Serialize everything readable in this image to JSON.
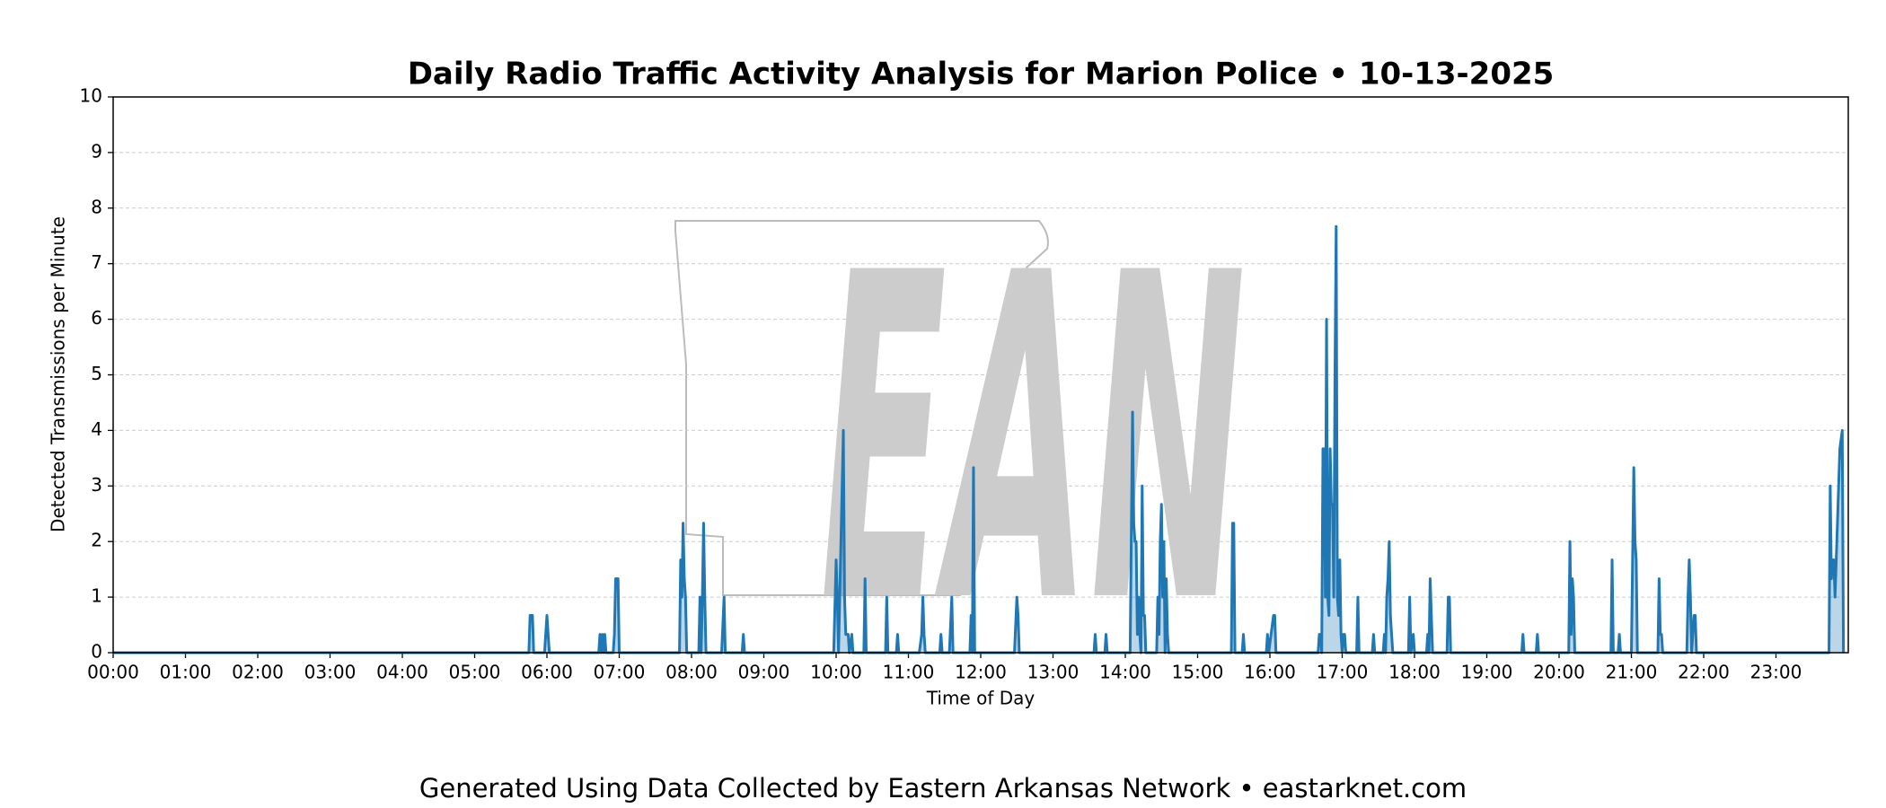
{
  "chart_data": {
    "type": "area",
    "title": "Daily Radio Traffic Activity Analysis for Marion Police • 10-13-2025",
    "x_label": "Time of Day",
    "y_label": "Detected Transmissions per Minute",
    "footer": "Generated Using Data Collected by Eastern Arkansas Network • eastarknet.com",
    "watermark": "EAN",
    "color": "#1f77b4",
    "grid": true,
    "xlim": [
      0,
      1440
    ],
    "ylim": [
      0,
      10
    ],
    "yticks": [
      0,
      1,
      2,
      3,
      4,
      5,
      6,
      7,
      8,
      9,
      10
    ],
    "xticks": [
      {
        "value": 0,
        "label": "00:00"
      },
      {
        "value": 60,
        "label": "01:00"
      },
      {
        "value": 120,
        "label": "02:00"
      },
      {
        "value": 180,
        "label": "03:00"
      },
      {
        "value": 240,
        "label": "04:00"
      },
      {
        "value": 300,
        "label": "05:00"
      },
      {
        "value": 360,
        "label": "06:00"
      },
      {
        "value": 420,
        "label": "07:00"
      },
      {
        "value": 480,
        "label": "08:00"
      },
      {
        "value": 540,
        "label": "09:00"
      },
      {
        "value": 600,
        "label": "10:00"
      },
      {
        "value": 660,
        "label": "11:00"
      },
      {
        "value": 720,
        "label": "12:00"
      },
      {
        "value": 780,
        "label": "13:00"
      },
      {
        "value": 840,
        "label": "14:00"
      },
      {
        "value": 900,
        "label": "15:00"
      },
      {
        "value": 960,
        "label": "16:00"
      },
      {
        "value": 1020,
        "label": "17:00"
      },
      {
        "value": 1080,
        "label": "18:00"
      },
      {
        "value": 1140,
        "label": "19:00"
      },
      {
        "value": 1200,
        "label": "20:00"
      },
      {
        "value": 1260,
        "label": "21:00"
      },
      {
        "value": 1320,
        "label": "22:00"
      },
      {
        "value": 1380,
        "label": "23:00"
      }
    ],
    "x": [
      0,
      345,
      346,
      348,
      349,
      358,
      360,
      361,
      362,
      403,
      404,
      405,
      406,
      407,
      408,
      409,
      415,
      416,
      417,
      419,
      420,
      470,
      471,
      472,
      473,
      474,
      475,
      476,
      486,
      487,
      488,
      489,
      490,
      491,
      492,
      505,
      507,
      508,
      522,
      523,
      524,
      598,
      600,
      601,
      602,
      606,
      607,
      608,
      610,
      611,
      613,
      614,
      623,
      624,
      625,
      641,
      642,
      643,
      650,
      651,
      652,
      669,
      671,
      672,
      673,
      674,
      686,
      687,
      688,
      694,
      696,
      697,
      711,
      712,
      713,
      714,
      715,
      748,
      750,
      751,
      752,
      814,
      815,
      816,
      823,
      824,
      825,
      844,
      846,
      847,
      848,
      849,
      850,
      851,
      852,
      853,
      854,
      855,
      856,
      857,
      866,
      867,
      868,
      869,
      870,
      871,
      872,
      873,
      874,
      875,
      876,
      928,
      929,
      930,
      931,
      937,
      938,
      939,
      957,
      958,
      959,
      963,
      964,
      965,
      1000,
      1001,
      1002,
      1003,
      1004,
      1005,
      1006,
      1007,
      1008,
      1009,
      1010,
      1011,
      1012,
      1013,
      1014,
      1015,
      1016,
      1017,
      1018,
      1019,
      1020,
      1021,
      1022,
      1023,
      1032,
      1033,
      1034,
      1045,
      1046,
      1047,
      1054,
      1055,
      1056,
      1057,
      1058,
      1059,
      1060,
      1061,
      1062,
      1075,
      1076,
      1077,
      1079,
      1080,
      1090,
      1091,
      1092,
      1093,
      1094,
      1095,
      1107,
      1108,
      1109,
      1110,
      1169,
      1170,
      1171,
      1181,
      1182,
      1183,
      1208,
      1209,
      1210,
      1211,
      1212,
      1213,
      1243,
      1244,
      1245,
      1249,
      1250,
      1251,
      1260,
      1262,
      1263,
      1264,
      1265,
      1282,
      1283,
      1284,
      1285,
      1286,
      1306,
      1307,
      1308,
      1309,
      1310,
      1312,
      1313,
      1314,
      1424,
      1425,
      1426,
      1427,
      1428,
      1429,
      1433,
      1435,
      1436
    ],
    "values": [
      0,
      0,
      0.67,
      0.67,
      0,
      0,
      0.67,
      0.33,
      0,
      0,
      0.33,
      0,
      0.33,
      0,
      0.33,
      0,
      0,
      0.33,
      1.33,
      1.33,
      0,
      0,
      1.67,
      1,
      2.33,
      1.33,
      1,
      0,
      0,
      1,
      0,
      1,
      2.33,
      1,
      0,
      0,
      1,
      0,
      0,
      0.33,
      0,
      0,
      1.67,
      1,
      0,
      4,
      1,
      0.33,
      0.33,
      0,
      0.33,
      0,
      0,
      1.33,
      0,
      0,
      1,
      0,
      0,
      0.33,
      0,
      0,
      0.33,
      1,
      0.33,
      0,
      0,
      0.33,
      0,
      0,
      1,
      0,
      0,
      0.67,
      0,
      3.33,
      0,
      0,
      1,
      0.67,
      0,
      0,
      0.33,
      0,
      0,
      0.33,
      0,
      0,
      4.33,
      2.33,
      2,
      2,
      0.33,
      1,
      0.33,
      0,
      3,
      0.67,
      0.67,
      0,
      0,
      1,
      0.33,
      2,
      2.67,
      1,
      2,
      0,
      1.33,
      0.33,
      0,
      0,
      2.33,
      2.33,
      0,
      0,
      0.33,
      0,
      0,
      0.33,
      0,
      0.67,
      0.67,
      0,
      0,
      0.33,
      0.33,
      0,
      3.67,
      3.67,
      1,
      6,
      1,
      0.67,
      3.67,
      2.67,
      2.67,
      1,
      5,
      7.67,
      1,
      0.67,
      1.67,
      0.33,
      0,
      0.33,
      0.33,
      0,
      0,
      1,
      0,
      0,
      0.33,
      0,
      0,
      0.33,
      0,
      1,
      1.33,
      2,
      0.67,
      0.33,
      0,
      0,
      1,
      0,
      0.33,
      0,
      0,
      0.33,
      0,
      1.33,
      0.67,
      0,
      0,
      1,
      1,
      0,
      0,
      0.33,
      0,
      0,
      0.33,
      0,
      0,
      2,
      0.33,
      1.33,
      1,
      0,
      0,
      1.67,
      0,
      0,
      0.33,
      0,
      0,
      3.33,
      2,
      1.67,
      0,
      0,
      1.33,
      0.33,
      0.33,
      0,
      0,
      1,
      1.67,
      1,
      0,
      0.67,
      0.67,
      0,
      0,
      3,
      1.33,
      1.67,
      1.67,
      1,
      3.67,
      4,
      0
    ]
  }
}
